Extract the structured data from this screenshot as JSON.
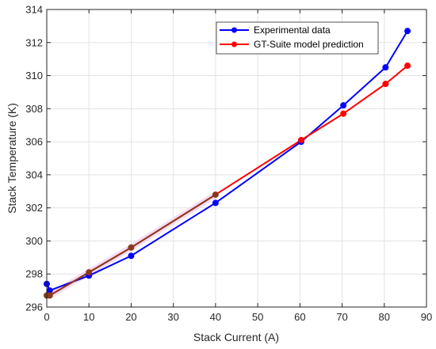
{
  "chart_data": {
    "type": "line",
    "title": "",
    "xlabel": "Stack Current (A)",
    "ylabel": "Stack Temperature (K)",
    "xlim": [
      0,
      90
    ],
    "ylim": [
      296,
      314
    ],
    "xticks": [
      0,
      10,
      20,
      30,
      40,
      50,
      60,
      70,
      80,
      90
    ],
    "yticks": [
      296,
      298,
      300,
      302,
      304,
      306,
      308,
      310,
      312,
      314
    ],
    "grid": true,
    "legend_position": "top-right",
    "series": [
      {
        "name": "Experimental data",
        "color": "#0000ff",
        "marker": "circle",
        "x": [
          0,
          0.7,
          10,
          20,
          40,
          60.3,
          70.3,
          80.3,
          85.5
        ],
        "y": [
          297.4,
          297.0,
          297.9,
          299.1,
          302.3,
          306.0,
          308.2,
          310.5,
          312.7
        ]
      },
      {
        "name": "GT-Suite model prediction",
        "color": "#ff0000",
        "marker": "circle",
        "x": [
          0,
          0.7,
          10,
          20,
          40,
          60.3,
          70.3,
          80.3,
          85.5
        ],
        "y": [
          296.7,
          296.7,
          298.1,
          299.6,
          302.8,
          306.1,
          307.7,
          309.5,
          310.6
        ]
      }
    ],
    "overlap_color": "#8b3a1a",
    "highlight_color": "#f3d8f3"
  }
}
